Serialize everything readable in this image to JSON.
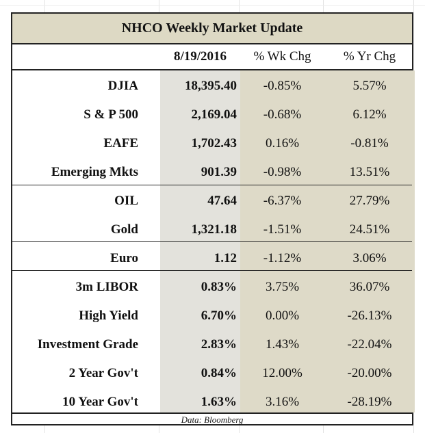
{
  "title": "NHCO Weekly Market Update",
  "header": {
    "date": "8/19/2016",
    "wk_chg": "% Wk Chg",
    "yr_chg": "% Yr Chg"
  },
  "rows": [
    {
      "label": "DJIA",
      "value": "18,395.40",
      "wk": "-0.85%",
      "yr": "5.57%"
    },
    {
      "label": "S & P 500",
      "value": "2,169.04",
      "wk": "-0.68%",
      "yr": "6.12%"
    },
    {
      "label": "EAFE",
      "value": "1,702.43",
      "wk": "0.16%",
      "yr": "-0.81%"
    },
    {
      "label": "Emerging Mkts",
      "value": "901.39",
      "wk": "-0.98%",
      "yr": "13.51%"
    },
    {
      "label": "OIL",
      "value": "47.64",
      "wk": "-6.37%",
      "yr": "27.79%"
    },
    {
      "label": "Gold",
      "value": "1,321.18",
      "wk": "-1.51%",
      "yr": "24.51%"
    },
    {
      "label": "Euro",
      "value": "1.12",
      "wk": "-1.12%",
      "yr": "3.06%"
    },
    {
      "label": "3m LIBOR",
      "value": "0.83%",
      "wk": "3.75%",
      "yr": "36.07%"
    },
    {
      "label": "High Yield",
      "value": "6.70%",
      "wk": "0.00%",
      "yr": "-26.13%"
    },
    {
      "label": "Investment Grade",
      "value": "2.83%",
      "wk": "1.43%",
      "yr": "-22.04%"
    },
    {
      "label": "2 Year Gov't",
      "value": "0.84%",
      "wk": "12.00%",
      "yr": "-20.00%"
    },
    {
      "label": "10 Year Gov't",
      "value": "1.63%",
      "wk": "3.16%",
      "yr": "-28.19%"
    }
  ],
  "footer": "Data: Bloomberg"
}
